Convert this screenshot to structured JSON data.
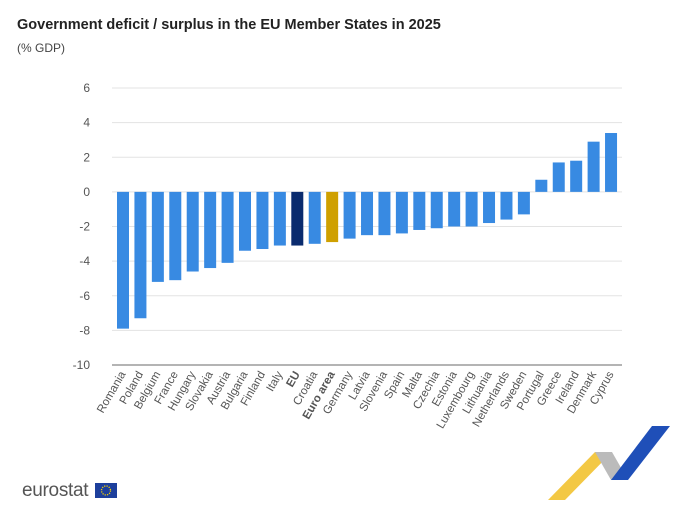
{
  "chart_data": {
    "type": "bar",
    "title": "Government deficit / surplus in the EU Member States in 2025",
    "subtitle": "(% GDP)",
    "ylim": [
      -10,
      6
    ],
    "yticks": [
      6,
      4,
      2,
      0,
      -2,
      -4,
      -6,
      -8,
      -10
    ],
    "grid": true,
    "categories": [
      "Romania",
      "Poland",
      "Belgium",
      "France",
      "Hungary",
      "Slovakia",
      "Austria",
      "Bulgaria",
      "Finland",
      "Italy",
      "EU",
      "Croatia",
      "Euro area",
      "Germany",
      "Latvia",
      "Slovenia",
      "Spain",
      "Malta",
      "Czechia",
      "Estonia",
      "Luxembourg",
      "Lithuania",
      "Netherlands",
      "Sweden",
      "Portugal",
      "Greece",
      "Ireland",
      "Denmark",
      "Cyprus"
    ],
    "values": [
      -7.9,
      -7.3,
      -5.2,
      -5.1,
      -4.6,
      -4.4,
      -4.1,
      -3.4,
      -3.3,
      -3.1,
      -3.1,
      -3.0,
      -2.9,
      -2.7,
      -2.5,
      -2.5,
      -2.4,
      -2.2,
      -2.1,
      -2.0,
      -2.0,
      -1.8,
      -1.6,
      -1.3,
      0.7,
      1.7,
      1.8,
      2.9,
      3.4
    ],
    "highlight": {
      "EU": "#0a2b6e",
      "Euro area": "#cfa000"
    },
    "bold_categories": [
      "EU",
      "Euro area"
    ],
    "colors": {
      "default": "#388ae2"
    }
  },
  "logo": {
    "text": "eurostat"
  }
}
